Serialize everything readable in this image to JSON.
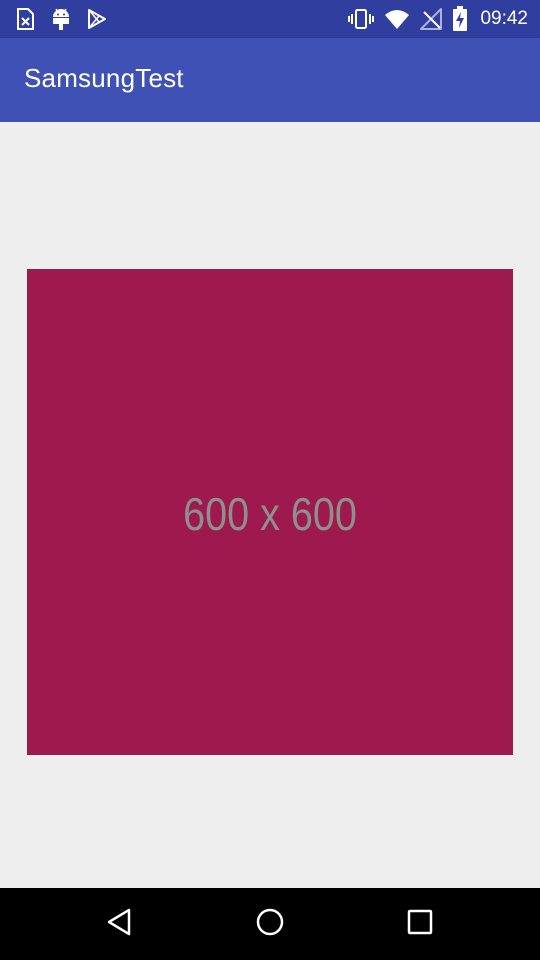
{
  "status_bar": {
    "time": "09:42",
    "left_icons": [
      "sim-card-alert-icon",
      "android-debug-icon",
      "play-store-icon"
    ],
    "right_icons": [
      "vibrate-icon",
      "wifi-icon",
      "no-signal-icon",
      "battery-charging-icon"
    ]
  },
  "app_bar": {
    "title": "SamsungTest",
    "color": "#3F51B5",
    "status_color": "#303F9F"
  },
  "content": {
    "image_label": "600 x 600",
    "image_color": "#9E194D"
  },
  "nav_bar": {
    "buttons": [
      "back-icon",
      "home-icon",
      "recents-icon"
    ]
  }
}
